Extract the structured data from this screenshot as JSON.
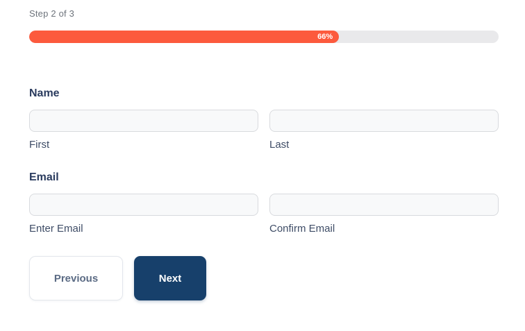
{
  "page": {
    "step_indicator": "Step 2 of 3",
    "progress": {
      "percent": 66,
      "label": "66%",
      "fill_color": "#fc5a3d",
      "track_color": "#e9e9eb"
    },
    "form": {
      "name_section": {
        "label": "Name",
        "fields": [
          {
            "sub_label": "First",
            "value": ""
          },
          {
            "sub_label": "Last",
            "value": ""
          }
        ]
      },
      "email_section": {
        "label": "Email",
        "fields": [
          {
            "sub_label": "Enter Email",
            "value": ""
          },
          {
            "sub_label": "Confirm Email",
            "value": ""
          }
        ]
      }
    },
    "buttons": {
      "previous_label": "Previous",
      "next_label": "Next"
    },
    "colors": {
      "heading": "#2a3b5e",
      "sub_label": "#3e4c66",
      "step_text": "#6d737b",
      "next_button_bg": "#17406b",
      "previous_button_text": "#5b6b84"
    }
  }
}
